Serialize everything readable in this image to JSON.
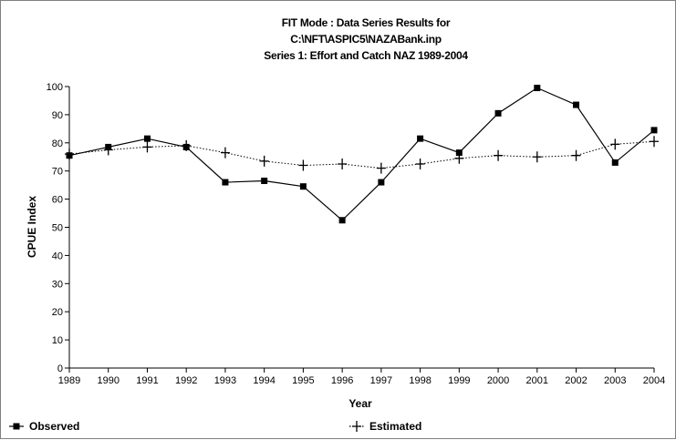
{
  "chart_data": {
    "type": "line",
    "title_lines": [
      "FIT Mode : Data Series Results for",
      "C:\\NFT\\ASPIC5\\NAZABank.inp",
      "Series 1: Effort and Catch NAZ 1989-2004"
    ],
    "xlabel": "Year",
    "ylabel": "CPUE Index",
    "x": [
      1989,
      1990,
      1991,
      1992,
      1993,
      1994,
      1995,
      1996,
      1997,
      1998,
      1999,
      2000,
      2001,
      2002,
      2003,
      2004
    ],
    "xlim": [
      1989,
      2004
    ],
    "ylim": [
      0,
      100
    ],
    "yticks": [
      0,
      10,
      20,
      30,
      40,
      50,
      60,
      70,
      80,
      90,
      100
    ],
    "grid": false,
    "legend_position": "bottom",
    "series": [
      {
        "name": "Observed",
        "marker": "square",
        "line": "solid",
        "color": "#000000",
        "values": [
          75.5,
          78.5,
          81.5,
          78.5,
          66,
          66.5,
          64.5,
          52.5,
          66,
          81.5,
          76.5,
          90.5,
          99.5,
          93.5,
          73,
          84.5
        ]
      },
      {
        "name": "Estimated",
        "marker": "plus",
        "line": "dotted",
        "color": "#000000",
        "values": [
          76,
          77.5,
          78.5,
          79,
          76.5,
          73.5,
          72,
          72.5,
          71,
          72.5,
          74.5,
          75.5,
          75,
          75.5,
          79.5,
          80.5
        ]
      }
    ]
  }
}
